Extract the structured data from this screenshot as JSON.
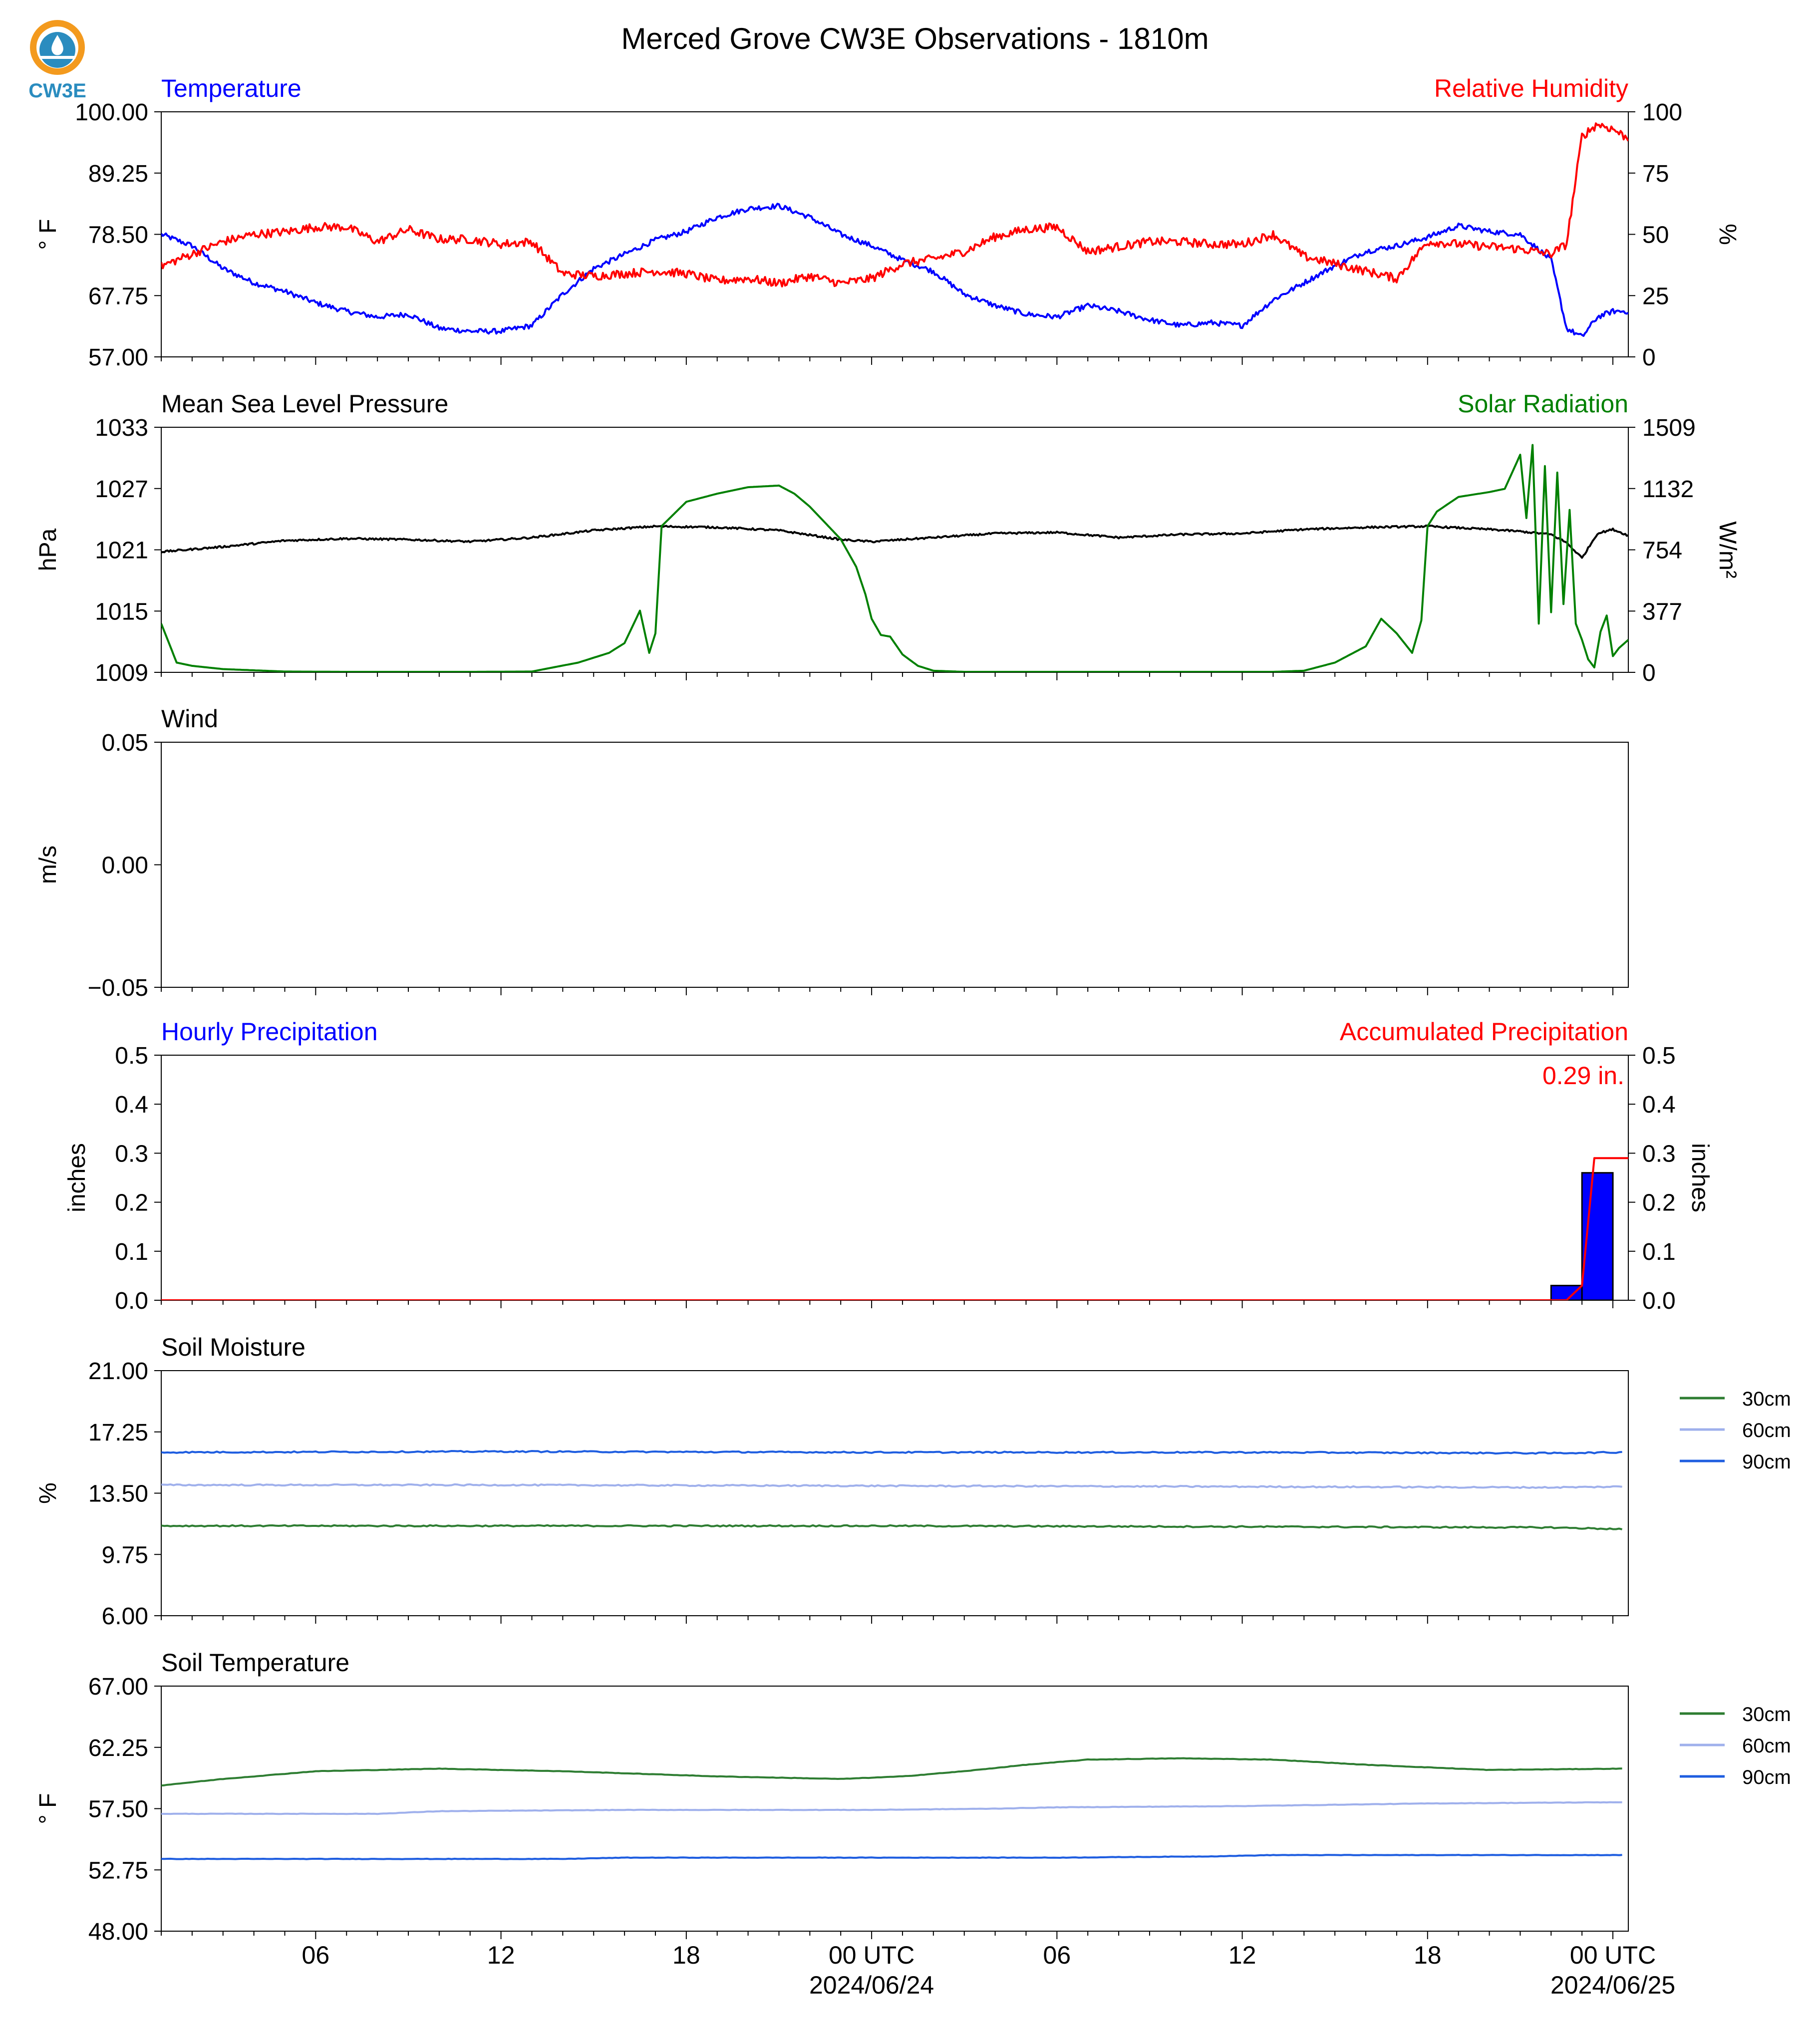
{
  "figure": {
    "title": "Merced Grove CW3E Observations - 1810m",
    "logo_text": "CW3E",
    "x_tick_labels": [
      "06",
      "12",
      "18",
      "00 UTC",
      "06",
      "12",
      "18",
      "00 UTC"
    ],
    "x_date_labels": [
      "2024/06/24",
      "2024/06/25"
    ]
  },
  "colors": {
    "temperature": "#0000ff",
    "humidity": "#ff0000",
    "pressure": "#000000",
    "solar": "#008000",
    "hourly_precip_fill": "#0000ff",
    "accum_precip": "#ff0000",
    "soil_30cm": "#2e7d32",
    "soil_60cm": "#9fb0ec",
    "soil_90cm": "#1e5de0",
    "logo_orange": "#f39a1e",
    "logo_blue": "#2a8cbf"
  },
  "chart_data": [
    {
      "type": "line",
      "panel": "temperature_humidity",
      "left_label": "Temperature",
      "right_label": "Relative Humidity",
      "ylabel": "° F",
      "ylabel_right": "%",
      "ylim": [
        57.0,
        100.0
      ],
      "ylim_right": [
        0,
        100
      ],
      "yticks": [
        "57.00",
        "67.75",
        "78.50",
        "89.25",
        "100.00"
      ],
      "yticks_right": [
        "0",
        "25",
        "50",
        "75",
        "100"
      ],
      "x_hours_range": [
        -23,
        24.5
      ],
      "series": [
        {
          "axis": "left",
          "color_key": "temperature",
          "x": [
            -23,
            -22,
            -21,
            -20,
            -19,
            -18,
            -17,
            -16,
            -15,
            -14,
            -13,
            -12,
            -11,
            -10,
            -9,
            -8,
            -7,
            -6,
            -5,
            -4,
            -3,
            -2,
            -1,
            0,
            1,
            2,
            3,
            4,
            5,
            6,
            7,
            8,
            9,
            10,
            11,
            12,
            13,
            14,
            15,
            16,
            17,
            18,
            19,
            20,
            21,
            22,
            22.5,
            23,
            23.5,
            24,
            24.5
          ],
          "y": [
            78.5,
            76.5,
            72.5,
            70,
            68.5,
            66.5,
            65,
            64,
            64.5,
            62,
            61.5,
            61.5,
            62.5,
            68,
            72.5,
            75,
            77.5,
            79,
            81.5,
            83,
            83.5,
            81.5,
            78.5,
            76.5,
            74,
            72,
            68,
            66,
            64.5,
            64,
            66,
            65,
            63.5,
            62.5,
            63,
            62.5,
            67,
            70,
            73,
            75.5,
            76.5,
            78,
            80,
            79,
            78.5,
            74,
            62,
            60.5,
            64,
            65,
            65
          ]
        },
        {
          "axis": "right",
          "color_key": "humidity",
          "x": [
            -23,
            -22,
            -21,
            -20,
            -19,
            -18,
            -17,
            -16,
            -15,
            -14,
            -13,
            -12,
            -11,
            -10,
            -9,
            -8,
            -7,
            -6,
            -5,
            -4,
            -3,
            -2,
            -1,
            0,
            1,
            2,
            3,
            4,
            5,
            6,
            7,
            8,
            9,
            10,
            11,
            12,
            13,
            14,
            15,
            16,
            17,
            18,
            19,
            20,
            21,
            22,
            22.5,
            23,
            23.5,
            24,
            24.5
          ],
          "y": [
            37,
            42,
            47,
            50,
            51,
            53,
            53,
            47,
            52,
            48,
            48,
            46,
            47,
            34,
            33,
            34,
            35,
            34,
            31,
            32,
            30,
            33,
            30,
            32,
            38,
            40,
            43,
            49,
            52,
            53,
            43,
            45,
            47,
            47,
            46,
            46,
            50,
            41,
            38,
            35,
            32,
            47,
            46,
            45,
            44,
            42,
            46,
            90,
            95,
            93,
            89
          ]
        }
      ]
    },
    {
      "type": "line",
      "panel": "pressure_solar",
      "left_label": "Mean Sea Level Pressure",
      "right_label": "Solar Radiation",
      "ylabel": "hPa",
      "ylabel_right": "W/m²",
      "ylim": [
        1009,
        1033
      ],
      "ylim_right": [
        0,
        1509
      ],
      "yticks": [
        "1009",
        "1015",
        "1021",
        "1027",
        "1033"
      ],
      "yticks_right": [
        "0",
        "377",
        "754",
        "1132",
        "1509"
      ],
      "x_hours_range": [
        -23,
        24.5
      ],
      "series": [
        {
          "axis": "left",
          "color_key": "pressure",
          "x": [
            -23,
            -21,
            -19,
            -17,
            -15,
            -13,
            -11,
            -9,
            -7,
            -5,
            -3,
            -1,
            0,
            2,
            4,
            6,
            8,
            10,
            12,
            14,
            16,
            18,
            20,
            21,
            22,
            22.5,
            23,
            23.5,
            24,
            24.5
          ],
          "y": [
            1020.8,
            1021.3,
            1021.9,
            1022.1,
            1022.0,
            1021.8,
            1022.2,
            1022.9,
            1023.3,
            1023.2,
            1022.9,
            1022.0,
            1021.8,
            1022.2,
            1022.6,
            1022.7,
            1022.2,
            1022.5,
            1022.6,
            1023.0,
            1023.2,
            1023.3,
            1023.0,
            1022.8,
            1022.5,
            1021.7,
            1020.2,
            1022.6,
            1023.0,
            1022.4
          ]
        },
        {
          "axis": "right",
          "color_key": "solar",
          "x": [
            -23,
            -22.5,
            -22,
            -21,
            -19,
            -17,
            -15,
            -13,
            -11,
            -9.5,
            -8.5,
            -8,
            -7.5,
            -7.2,
            -7,
            -6.8,
            -6,
            -5,
            -4,
            -3,
            -2.5,
            -2,
            -1,
            -0.5,
            -0.2,
            0,
            0.3,
            0.6,
            1,
            1.5,
            2,
            3,
            5,
            7,
            9,
            11,
            13,
            14,
            15,
            16,
            16.5,
            17,
            17.5,
            17.8,
            18,
            18.3,
            19,
            20,
            20.5,
            21,
            21.2,
            21.4,
            21.6,
            21.8,
            22,
            22.2,
            22.4,
            22.6,
            22.8,
            23,
            23.2,
            23.4,
            23.6,
            23.8,
            24,
            24.2,
            24.5
          ],
          "y": [
            300,
            60,
            40,
            20,
            5,
            3,
            3,
            3,
            5,
            60,
            120,
            180,
            380,
            120,
            240,
            900,
            1050,
            1100,
            1140,
            1150,
            1100,
            1020,
            820,
            650,
            480,
            330,
            230,
            220,
            110,
            40,
            10,
            3,
            3,
            3,
            3,
            3,
            3,
            10,
            60,
            160,
            330,
            240,
            120,
            320,
            900,
            990,
            1080,
            1110,
            1130,
            1340,
            950,
            1400,
            300,
            1270,
            370,
            1230,
            420,
            1000,
            300,
            200,
            80,
            30,
            250,
            350,
            100,
            150,
            200
          ]
        }
      ]
    },
    {
      "type": "line",
      "panel": "wind",
      "left_label": "Wind",
      "ylabel": "m/s",
      "ylim": [
        -0.055,
        0.055
      ],
      "yticks": [
        "−0.05",
        "0.00",
        "0.05"
      ],
      "series": []
    },
    {
      "type": "bar",
      "panel": "precipitation",
      "left_label": "Hourly Precipitation",
      "right_label": "Accumulated Precipitation",
      "ylabel": "inches",
      "ylabel_right": "inches",
      "ylim": [
        0.0,
        0.5
      ],
      "ylim_right": [
        0.0,
        0.5
      ],
      "yticks": [
        "0.0",
        "0.1",
        "0.2",
        "0.3",
        "0.4",
        "0.5"
      ],
      "yticks_right": [
        "0.0",
        "0.1",
        "0.2",
        "0.3",
        "0.4",
        "0.5"
      ],
      "total_label": "0.29 in.",
      "bars": [
        {
          "start_hour": 22,
          "end_hour": 23,
          "value": 0.03
        },
        {
          "start_hour": 23,
          "end_hour": 24,
          "value": 0.26
        }
      ],
      "series": [
        {
          "name": "accumulated",
          "axis": "right",
          "color_key": "accum_precip",
          "x": [
            -23,
            22.5,
            23,
            23.4,
            24.5
          ],
          "y": [
            0,
            0,
            0.03,
            0.29,
            0.29
          ]
        }
      ]
    },
    {
      "type": "line",
      "panel": "soil_moisture",
      "left_label": "Soil Moisture",
      "ylabel": "%",
      "ylim": [
        6.0,
        21.0
      ],
      "yticks": [
        "6.00",
        "9.75",
        "13.50",
        "17.25",
        "21.00"
      ],
      "legend": [
        "30cm",
        "60cm",
        "90cm"
      ],
      "series": [
        {
          "name": "30cm",
          "color_key": "soil_30cm",
          "x": [
            -23,
            -12,
            0,
            12,
            22,
            24.3
          ],
          "y": [
            11.5,
            11.5,
            11.5,
            11.45,
            11.4,
            11.3
          ]
        },
        {
          "name": "60cm",
          "color_key": "soil_60cm",
          "x": [
            -23,
            -12,
            0,
            12,
            22,
            24.3
          ],
          "y": [
            14.0,
            14.0,
            13.95,
            13.9,
            13.85,
            13.9
          ]
        },
        {
          "name": "90cm",
          "color_key": "soil_90cm",
          "x": [
            -23,
            -12,
            0,
            12,
            22,
            24.3
          ],
          "y": [
            16.0,
            16.05,
            16.0,
            16.0,
            15.95,
            16.0
          ]
        }
      ]
    },
    {
      "type": "line",
      "panel": "soil_temperature",
      "left_label": "Soil Temperature",
      "ylabel": "° F",
      "ylim": [
        48.0,
        67.0
      ],
      "yticks": [
        "48.00",
        "52.75",
        "57.50",
        "62.25",
        "67.00"
      ],
      "legend": [
        "30cm",
        "60cm",
        "90cm"
      ],
      "series": [
        {
          "name": "30cm",
          "color_key": "soil_30cm",
          "x": [
            -23,
            -21,
            -18,
            -14,
            -10,
            -5,
            -1,
            1,
            3,
            5,
            7,
            10,
            13,
            16,
            20,
            24.3
          ],
          "y": [
            59.3,
            59.8,
            60.4,
            60.6,
            60.4,
            60.0,
            59.8,
            60.0,
            60.4,
            60.9,
            61.3,
            61.4,
            61.3,
            60.9,
            60.5,
            60.6
          ]
        },
        {
          "name": "60cm",
          "color_key": "soil_60cm",
          "x": [
            -23,
            -16,
            -14,
            -8,
            0,
            4,
            6,
            12,
            18,
            24.3
          ],
          "y": [
            57.1,
            57.1,
            57.3,
            57.4,
            57.4,
            57.5,
            57.6,
            57.7,
            57.9,
            58.0
          ]
        },
        {
          "name": "90cm",
          "color_key": "soil_90cm",
          "x": [
            -23,
            -10,
            -8,
            0,
            6,
            11,
            13,
            16,
            24.3
          ],
          "y": [
            53.6,
            53.6,
            53.7,
            53.7,
            53.7,
            53.8,
            53.9,
            53.9,
            53.9
          ]
        }
      ]
    }
  ]
}
